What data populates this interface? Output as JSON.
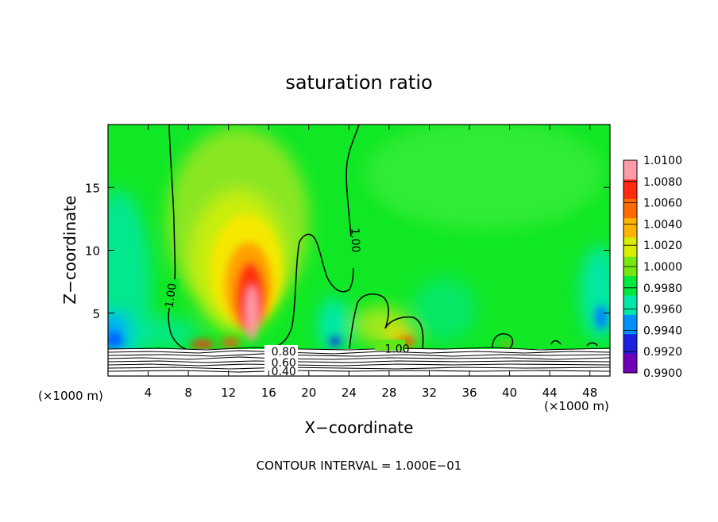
{
  "chart_data": {
    "type": "heatmap",
    "title": "saturation ratio",
    "xlabel": "X−coordinate",
    "ylabel": "Z−coordinate",
    "x_unit_label": "(×1000 m)",
    "y_unit_label": "(×1000 m)",
    "xlim": [
      0,
      50
    ],
    "ylim": [
      0,
      20
    ],
    "x_ticks": [
      4,
      8,
      12,
      16,
      20,
      24,
      28,
      32,
      36,
      40,
      44,
      48
    ],
    "y_ticks": [
      5,
      10,
      15
    ],
    "footer": "CONTOUR INTERVAL = 1.000E−01",
    "colorbar": {
      "labels": [
        "1.0100",
        "1.0080",
        "1.0060",
        "1.0040",
        "1.0020",
        "1.0000",
        "0.9980",
        "0.9960",
        "0.9940",
        "0.9920",
        "0.9900"
      ],
      "colors": [
        "#ff9aa8",
        "#ff2a10",
        "#ff6a00",
        "#ffb400",
        "#d8ee00",
        "#74e810",
        "#00e83c",
        "#00e8a8",
        "#0090ff",
        "#1a20dd",
        "#7000b8"
      ]
    },
    "contour_labels": [
      {
        "text": "1.00",
        "x": 6.3,
        "z": 6.4,
        "angle": -82
      },
      {
        "text": "1.00",
        "x": 24.6,
        "z": 10.8,
        "angle": 88
      },
      {
        "text": "1.00",
        "x": 28.8,
        "z": 2.1,
        "angle": 0
      },
      {
        "text": "0.80",
        "x": 17.5,
        "z": 1.9,
        "angle": 0
      },
      {
        "text": "0.60",
        "x": 17.5,
        "z": 1.0,
        "angle": 0
      },
      {
        "text": "0.40",
        "x": 17.5,
        "z": 0.3,
        "angle": 0
      }
    ]
  }
}
